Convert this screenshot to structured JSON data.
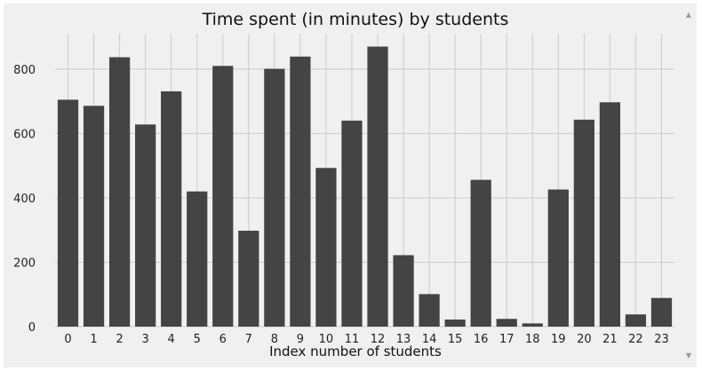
{
  "chart_data": {
    "type": "bar",
    "title": "Time spent (in minutes) by students",
    "xlabel": "Index number of students",
    "ylabel": "",
    "categories": [
      "0",
      "1",
      "2",
      "3",
      "4",
      "5",
      "6",
      "7",
      "8",
      "9",
      "10",
      "11",
      "12",
      "13",
      "14",
      "15",
      "16",
      "17",
      "18",
      "19",
      "20",
      "21",
      "22",
      "23"
    ],
    "values": [
      705,
      686,
      837,
      628,
      731,
      420,
      810,
      298,
      801,
      839,
      493,
      640,
      870,
      222,
      101,
      22,
      456,
      24,
      10,
      426,
      643,
      697,
      38,
      89
    ],
    "ylim": [
      0,
      910
    ],
    "yticks": [
      0,
      200,
      400,
      600,
      800
    ],
    "grid": true,
    "bar_color": "#444444",
    "background_color": "#f0f0f0",
    "grid_color": "#cbcbcb"
  },
  "scrollbar": {
    "up_icon": "triangle-up-icon",
    "down_icon": "triangle-down-icon"
  }
}
